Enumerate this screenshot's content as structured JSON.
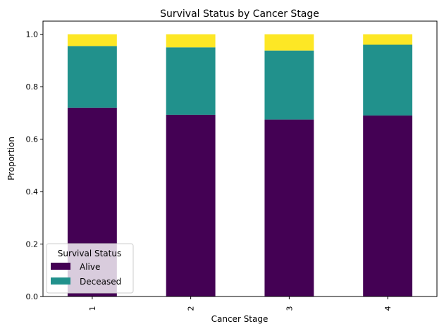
{
  "chart_data": {
    "type": "bar",
    "stacked": true,
    "title": "Survival Status by Cancer Stage",
    "xlabel": "Cancer Stage",
    "ylabel": "Proportion",
    "categories": [
      "1",
      "2",
      "3",
      "4"
    ],
    "ylim": [
      0,
      1.05
    ],
    "yticks": [
      "0.0",
      "0.2",
      "0.4",
      "0.6",
      "0.8",
      "1.0"
    ],
    "grid": false,
    "legend": {
      "title": "Survival Status",
      "placement": "lower-left"
    },
    "series": [
      {
        "name": "Alive",
        "color": "#440154",
        "values": [
          0.72,
          0.693,
          0.675,
          0.69
        ]
      },
      {
        "name": "Deceased",
        "color": "#21918c",
        "values": [
          0.235,
          0.257,
          0.263,
          0.27
        ]
      },
      {
        "color": "#fde725",
        "values": [
          0.045,
          0.05,
          0.062,
          0.04
        ]
      }
    ]
  }
}
